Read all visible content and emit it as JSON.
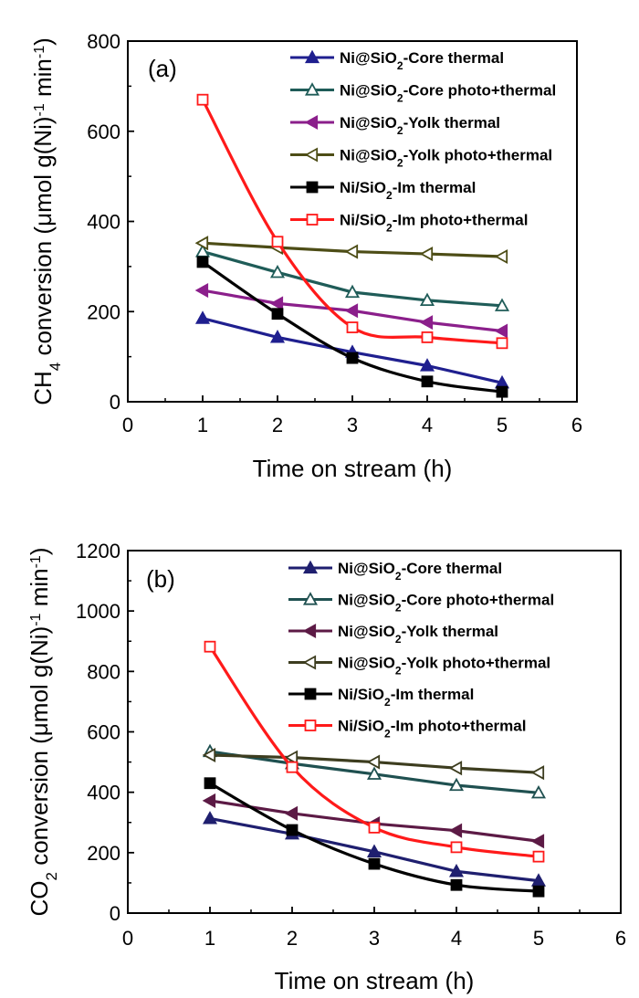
{
  "chart_data": [
    {
      "type": "line",
      "panel_label": "(a)",
      "x": [
        1,
        2,
        3,
        4,
        5
      ],
      "xlabel": "Time on stream (h)",
      "ylabel": "CH4 conversion (μmol g(Ni)-1 min-1)",
      "ylabel_parts": {
        "pre": "CH",
        "sub": "4",
        "mid": "conversion (μmol g(Ni)",
        "sup1": "-1",
        "post": " min",
        "sup2": "-1",
        "close": ")"
      },
      "xlim": [
        0,
        6
      ],
      "ylim": [
        0,
        800
      ],
      "xticks": [
        "0",
        "1",
        "2",
        "3",
        "4",
        "5",
        "6"
      ],
      "yticks": [
        "0",
        "200",
        "400",
        "600",
        "800"
      ],
      "legend_position": "top-right",
      "series": [
        {
          "name": "Ni@SiO2-Core thermal",
          "label_parts": [
            "Ni@SiO",
            "2",
            "-Core thermal"
          ],
          "color": "#1f1f8f",
          "marker": "triangle-up",
          "filled": true,
          "smooth": false,
          "values": [
            185,
            143,
            110,
            80,
            42
          ]
        },
        {
          "name": "Ni@SiO2-Core photo+thermal",
          "label_parts": [
            "Ni@SiO",
            "2",
            "-Core photo+thermal"
          ],
          "color": "#1f5c58",
          "marker": "triangle-up",
          "filled": false,
          "smooth": false,
          "values": [
            333,
            287,
            243,
            225,
            213
          ]
        },
        {
          "name": "Ni@SiO2-Yolk thermal",
          "label_parts": [
            "Ni@SiO",
            "2",
            "-Yolk thermal"
          ],
          "color": "#8b1f8b",
          "marker": "triangle-left",
          "filled": true,
          "smooth": false,
          "values": [
            247,
            218,
            202,
            176,
            157
          ]
        },
        {
          "name": "Ni@SiO2-Yolk photo+thermal",
          "label_parts": [
            "Ni@SiO",
            "2",
            "-Yolk photo+thermal"
          ],
          "color": "#4d4d16",
          "marker": "triangle-left",
          "filled": false,
          "smooth": false,
          "values": [
            352,
            342,
            333,
            328,
            322
          ]
        },
        {
          "name": "Ni/SiO2-Im thermal",
          "label_parts": [
            "Ni/SiO",
            "2",
            "-Im thermal"
          ],
          "color": "#000000",
          "marker": "square",
          "filled": true,
          "smooth": true,
          "values": [
            310,
            195,
            97,
            45,
            22
          ]
        },
        {
          "name": "Ni/SiO2-Im photo+thermal",
          "label_parts": [
            "Ni/SiO",
            "2",
            "-Im photo+thermal"
          ],
          "color": "#ff1a1a",
          "marker": "square",
          "filled": false,
          "smooth": true,
          "values": [
            670,
            355,
            165,
            143,
            130
          ]
        }
      ]
    },
    {
      "type": "line",
      "panel_label": "(b)",
      "x": [
        1,
        2,
        3,
        4,
        5
      ],
      "xlabel": "Time on stream (h)",
      "ylabel": "CO2 conversion (μmol g(Ni)-1 min-1)",
      "ylabel_parts": {
        "pre": "CO",
        "sub": "2",
        "mid": "conversion (μmol g(Ni)",
        "sup1": "-1",
        "post": " min",
        "sup2": "-1",
        "close": ")"
      },
      "xlim": [
        0,
        6
      ],
      "ylim": [
        0,
        1200
      ],
      "xticks": [
        "0",
        "1",
        "2",
        "3",
        "4",
        "5",
        "6"
      ],
      "yticks": [
        "0",
        "200",
        "400",
        "600",
        "800",
        "1000",
        "1200"
      ],
      "legend_position": "top-right",
      "series": [
        {
          "name": "Ni@SiO2-Core thermal",
          "label_parts": [
            "Ni@SiO",
            "2",
            "-Core thermal"
          ],
          "color": "#1f1f6f",
          "marker": "triangle-up",
          "filled": true,
          "smooth": false,
          "values": [
            313,
            262,
            203,
            138,
            107
          ]
        },
        {
          "name": "Ni@SiO2-Core photo+thermal",
          "label_parts": [
            "Ni@SiO",
            "2",
            "-Core photo+thermal"
          ],
          "color": "#1f5050",
          "marker": "triangle-up",
          "filled": false,
          "smooth": false,
          "values": [
            535,
            495,
            460,
            423,
            398
          ]
        },
        {
          "name": "Ni@SiO2-Yolk thermal",
          "label_parts": [
            "Ni@SiO",
            "2",
            "-Yolk thermal"
          ],
          "color": "#5c1a45",
          "marker": "triangle-left",
          "filled": true,
          "smooth": false,
          "values": [
            372,
            330,
            296,
            273,
            238
          ]
        },
        {
          "name": "Ni@SiO2-Yolk photo+thermal",
          "label_parts": [
            "Ni@SiO",
            "2",
            "-Yolk photo+thermal"
          ],
          "color": "#3d3d1f",
          "marker": "triangle-left",
          "filled": false,
          "smooth": false,
          "values": [
            523,
            515,
            500,
            480,
            465
          ]
        },
        {
          "name": "Ni/SiO2-Im thermal",
          "label_parts": [
            "Ni/SiO",
            "2",
            "-Im thermal"
          ],
          "color": "#000000",
          "marker": "square",
          "filled": true,
          "smooth": true,
          "values": [
            430,
            275,
            163,
            93,
            72
          ]
        },
        {
          "name": "Ni/SiO2-Im photo+thermal",
          "label_parts": [
            "Ni/SiO",
            "2",
            "-Im photo+thermal"
          ],
          "color": "#ff1a1a",
          "marker": "square",
          "filled": false,
          "smooth": true,
          "values": [
            882,
            483,
            283,
            218,
            187
          ]
        }
      ]
    }
  ]
}
